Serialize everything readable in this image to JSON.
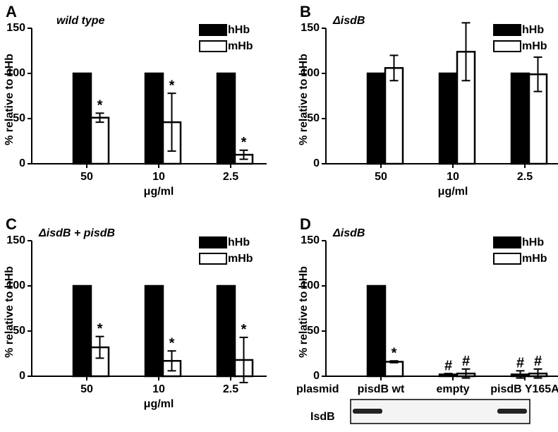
{
  "chart_data": [
    {
      "type": "bar",
      "panel": "A",
      "annotation": "wild type",
      "categories": [
        "50",
        "10",
        "2.5"
      ],
      "xlabel": "μg/ml",
      "ylabel": "% relative to hHb",
      "ylim": [
        0,
        150
      ],
      "yticks": [
        0,
        50,
        100,
        150
      ],
      "legend": "upper right",
      "series": [
        {
          "name": "hHb",
          "color": "#000000",
          "values": [
            100,
            100,
            100
          ]
        },
        {
          "name": "mHb",
          "color": "#ffffff",
          "values": [
            51,
            46,
            10
          ],
          "errors": [
            5,
            32,
            5
          ],
          "markers": [
            "*",
            "*",
            "*"
          ]
        }
      ]
    },
    {
      "type": "bar",
      "panel": "B",
      "annotation": "ΔisdB",
      "categories": [
        "50",
        "10",
        "2.5"
      ],
      "xlabel": "μg/ml",
      "ylabel": "% relative to hHb",
      "ylim": [
        0,
        150
      ],
      "yticks": [
        0,
        50,
        100,
        150
      ],
      "legend": "upper right",
      "series": [
        {
          "name": "hHb",
          "color": "#000000",
          "values": [
            100,
            100,
            100
          ]
        },
        {
          "name": "mHb",
          "color": "#ffffff",
          "values": [
            106,
            124,
            99
          ],
          "errors": [
            14,
            32,
            19
          ]
        }
      ]
    },
    {
      "type": "bar",
      "panel": "C",
      "annotation": "ΔisdB + pisdB",
      "categories": [
        "50",
        "10",
        "2.5"
      ],
      "xlabel": "μg/ml",
      "ylabel": "% relative to hHb",
      "ylim": [
        0,
        150
      ],
      "yticks": [
        0,
        50,
        100,
        150
      ],
      "legend": "upper right",
      "series": [
        {
          "name": "hHb",
          "color": "#000000",
          "values": [
            100,
            100,
            100
          ]
        },
        {
          "name": "mHb",
          "color": "#ffffff",
          "values": [
            32,
            17,
            18
          ],
          "errors": [
            12,
            11,
            25
          ],
          "markers": [
            "*",
            "*",
            "*"
          ]
        }
      ]
    },
    {
      "type": "bar",
      "panel": "D",
      "annotation": "ΔisdB",
      "categories": [
        "pisdB wt",
        "empty",
        "pisdB Y165A"
      ],
      "xlabel": "plasmid",
      "ylabel": "% relative to hHb",
      "blot_label": "IsdB",
      "ylim": [
        0,
        150
      ],
      "yticks": [
        0,
        50,
        100,
        150
      ],
      "legend": "upper right",
      "series": [
        {
          "name": "hHb",
          "color": "#000000",
          "values": [
            100,
            2,
            2
          ],
          "errors": [
            0,
            1,
            4
          ],
          "markers": [
            null,
            "#",
            "#"
          ]
        },
        {
          "name": "mHb",
          "color": "#ffffff",
          "values": [
            16,
            3,
            3
          ],
          "errors": [
            1,
            5,
            5
          ],
          "markers": [
            "*",
            "#",
            "#"
          ]
        }
      ]
    }
  ]
}
